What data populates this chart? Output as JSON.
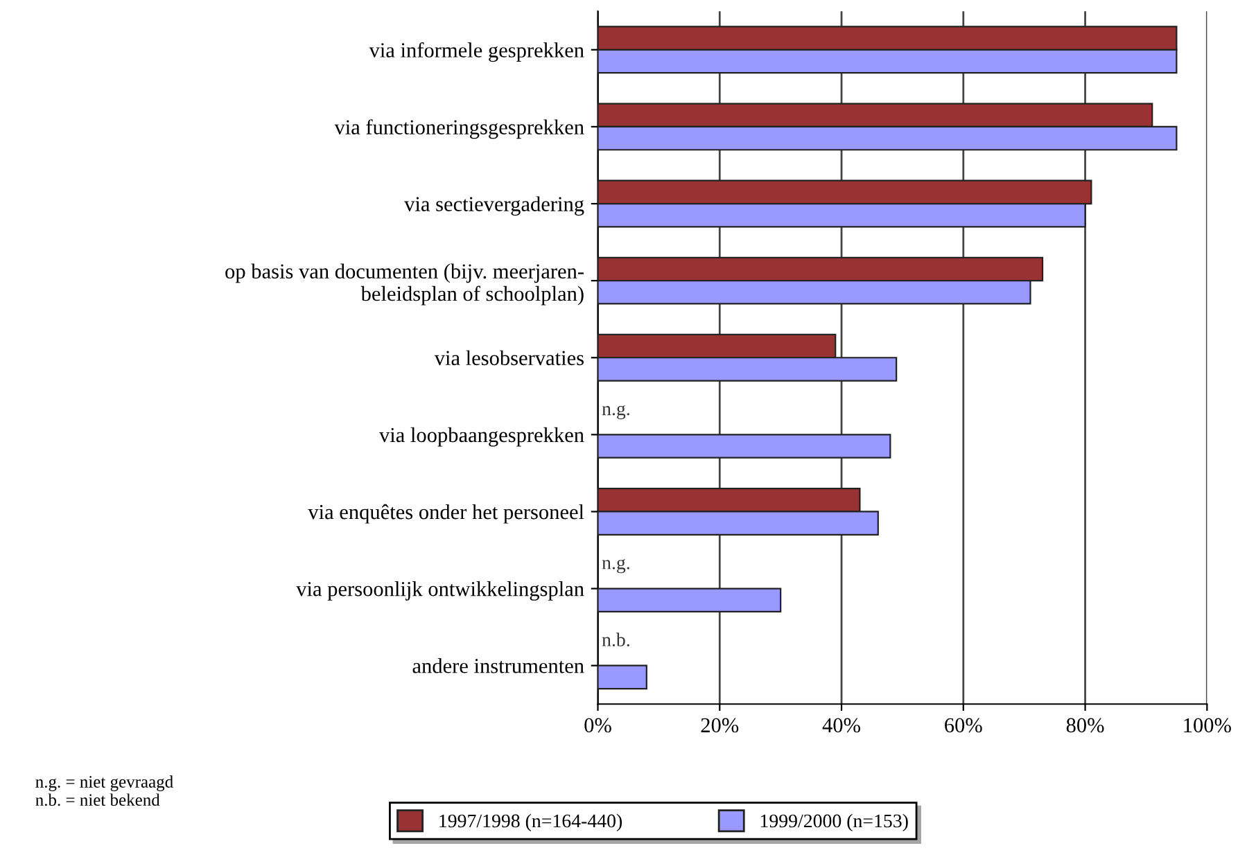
{
  "chart_data": {
    "type": "bar",
    "orientation": "horizontal",
    "categories": [
      "via informele gesprekken",
      "via functioneringsgesprekken",
      "via sectievergadering",
      "op basis van documenten (bijv. meerjaren-\nbeleidsplan of schoolplan)",
      "via lesobservaties",
      "via loopbaangesprekken",
      "via enquêtes onder het personeel",
      "via persoonlijk ontwikkelingsplan",
      "andere instrumenten"
    ],
    "series": [
      {
        "name": "1997/1998 (n=164-440)",
        "color": "#993333",
        "values": [
          95,
          91,
          81,
          73,
          39,
          null,
          43,
          null,
          null
        ]
      },
      {
        "name": "1999/2000 (n=153)",
        "color": "#9999ff",
        "values": [
          95,
          95,
          80,
          71,
          49,
          48,
          46,
          30,
          8
        ]
      }
    ],
    "xlim": [
      0,
      100
    ],
    "xticks": [
      {
        "value": 0,
        "label": "0%"
      },
      {
        "value": 20,
        "label": "20%"
      },
      {
        "value": 40,
        "label": "40%"
      },
      {
        "value": 60,
        "label": "60%"
      },
      {
        "value": 80,
        "label": "80%"
      },
      {
        "value": 100,
        "label": "100%"
      }
    ],
    "grid": "x",
    "legend": "bottom",
    "annotations": [
      {
        "text": "n.g.",
        "y": "via loopbaangesprekken"
      },
      {
        "text": "n.g.",
        "y": "via persoonlijk ontwikkelingsplan"
      },
      {
        "text": "n.b.",
        "y": "andere instrumenten"
      },
      "n.g. = niet gevraagd\nn.b. = niet bekend"
    ]
  }
}
